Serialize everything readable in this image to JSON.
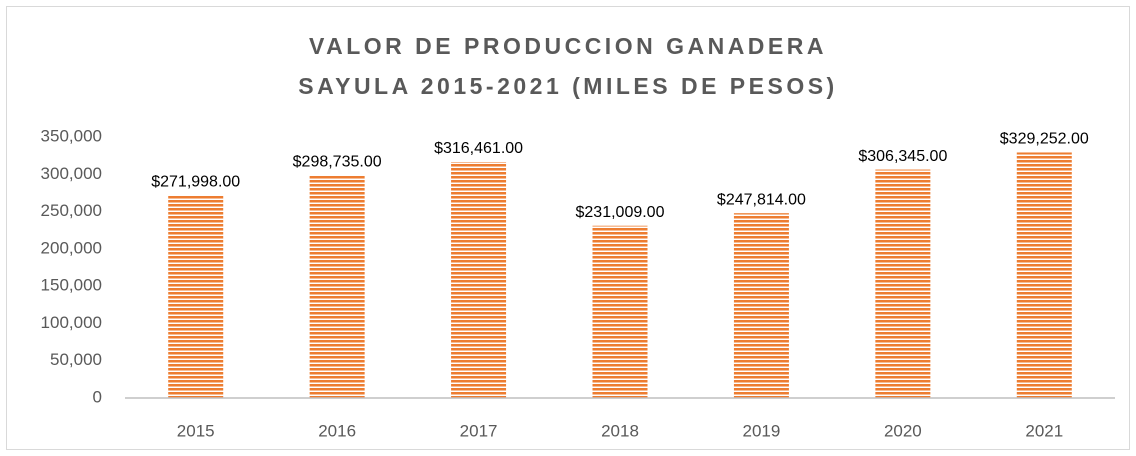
{
  "chart_data": {
    "type": "bar",
    "title_lines": [
      "VALOR DE PRODUCCION GANADERA",
      "SAYULA 2015-2021 (MILES DE PESOS)"
    ],
    "categories": [
      "2015",
      "2016",
      "2017",
      "2018",
      "2019",
      "2020",
      "2021"
    ],
    "values": [
      271998,
      298735,
      316461,
      231009,
      247814,
      306345,
      329252
    ],
    "value_labels": [
      "$271,998.00",
      "$298,735.00",
      "$316,461.00",
      "$231,009.00",
      "$247,814.00",
      "$306,345.00",
      "$329,252.00"
    ],
    "color": "#ed7d31",
    "ylim": [
      0,
      350000
    ],
    "yticks": [
      0,
      {
        "value": 50000,
        "label": "50,000"
      },
      {
        "value": 100000,
        "label": "100,000"
      },
      {
        "value": 150000,
        "label": "150,000"
      },
      {
        "value": 200000,
        "label": "200,000"
      },
      {
        "value": 250000,
        "label": "250,000"
      },
      {
        "value": 300000,
        "label": "300,000"
      },
      {
        "value": 350000,
        "label": "350,000"
      }
    ],
    "grid": false
  }
}
